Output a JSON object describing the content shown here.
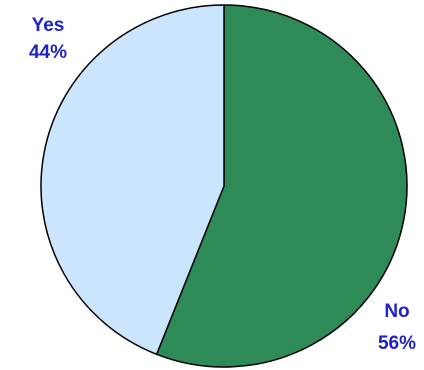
{
  "chart_data": {
    "type": "pie",
    "categories": [
      "No",
      "Yes"
    ],
    "values": [
      56,
      44
    ],
    "labels": [
      {
        "name": "No",
        "value": "56%"
      },
      {
        "name": "Yes",
        "value": "44%"
      }
    ],
    "colors": {
      "No": "#2e8b57",
      "Yes": "#cce5ff",
      "label_text": "#1f22c8",
      "outline": "#000000"
    },
    "legend": "none"
  }
}
